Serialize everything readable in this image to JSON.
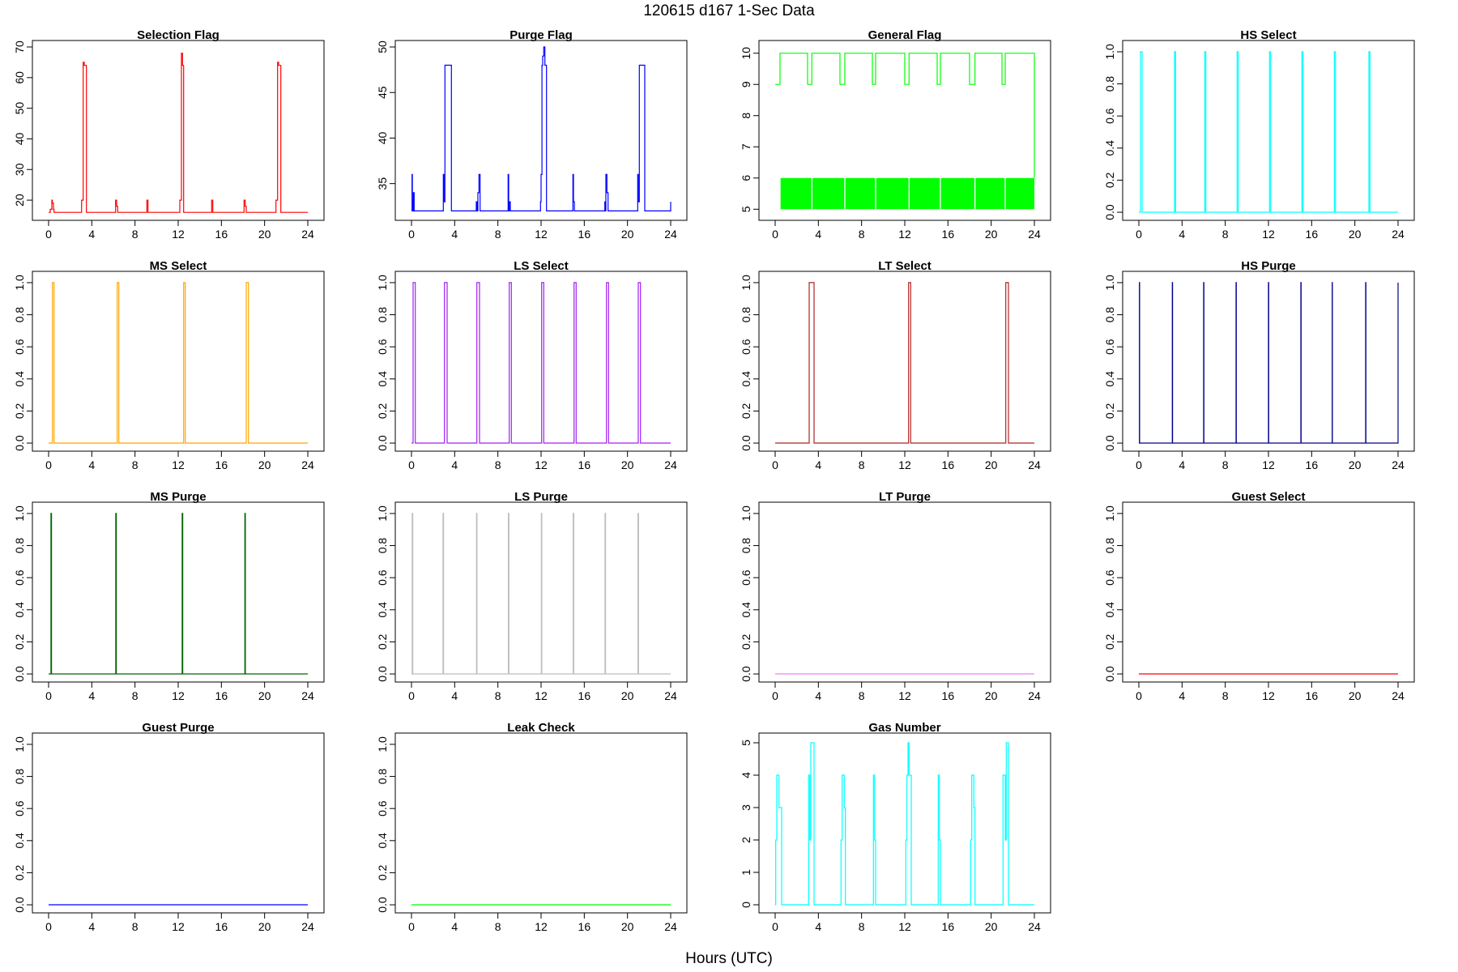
{
  "figure": {
    "title": "120615   d167   1-Sec Data",
    "xlabel": "Hours (UTC)"
  },
  "chart_data": [
    {
      "type": "line",
      "title": "Selection Flag",
      "color": "#ff0000",
      "xlim": [
        0,
        24
      ],
      "xticks": [
        0,
        4,
        8,
        12,
        16,
        20,
        24
      ],
      "ylim": [
        15,
        70
      ],
      "yticks": [
        20,
        30,
        40,
        50,
        60,
        70
      ],
      "series": [
        {
          "x": [
            0,
            0.15,
            0.3,
            0.35,
            0.45,
            0.5,
            3.05,
            3.2,
            3.3,
            3.5,
            3.6,
            6.05,
            6.2,
            6.3,
            6.4,
            9.0,
            9.1,
            9.2,
            12.05,
            12.15,
            12.3,
            12.4,
            12.5,
            15.0,
            15.1,
            15.2,
            18.0,
            18.1,
            18.2,
            18.3,
            21.05,
            21.2,
            21.3,
            21.5,
            21.6,
            24
          ],
          "y": [
            16,
            17,
            20,
            19,
            17,
            16,
            20,
            65,
            64,
            16,
            16,
            16,
            20,
            18,
            16,
            16,
            20,
            16,
            16,
            20,
            68,
            64,
            16,
            16,
            20,
            16,
            16,
            20,
            18,
            16,
            20,
            65,
            64,
            16,
            16,
            16
          ]
        }
      ]
    },
    {
      "type": "line",
      "title": "Purge Flag",
      "color": "#0000ff",
      "xlim": [
        0,
        24
      ],
      "xticks": [
        0,
        4,
        8,
        12,
        16,
        20,
        24
      ],
      "ylim": [
        31.5,
        50
      ],
      "yticks": [
        35,
        40,
        45,
        50
      ],
      "series": [
        {
          "x": [
            0,
            0.05,
            0.08,
            0.12,
            0.18,
            0.25,
            0.3,
            2.95,
            3.0,
            3.1,
            3.2,
            3.7,
            6.0,
            6.08,
            6.15,
            6.25,
            6.35,
            8.95,
            9.0,
            9.05,
            9.15,
            11.95,
            12.0,
            12.08,
            12.15,
            12.25,
            12.35,
            12.5,
            14.95,
            15.0,
            15.08,
            17.9,
            17.95,
            18.0,
            18.1,
            18.2,
            20.95,
            21.0,
            21.1,
            21.2,
            21.6,
            24
          ],
          "y": [
            32,
            36,
            33,
            32,
            34,
            32,
            32,
            36,
            33,
            48,
            48,
            32,
            33,
            32,
            34,
            36,
            32,
            36,
            32,
            33,
            32,
            33,
            36,
            48,
            49,
            50,
            48,
            32,
            36,
            33,
            32,
            33,
            32,
            36,
            34,
            32,
            36,
            33,
            48,
            48,
            32,
            33
          ]
        }
      ]
    },
    {
      "type": "line",
      "title": "General Flag",
      "color": "#00ff00",
      "xlim": [
        0,
        24
      ],
      "xticks": [
        0,
        4,
        8,
        12,
        16,
        20,
        24
      ],
      "ylim": [
        4.8,
        10.2
      ],
      "yticks": [
        5,
        6,
        7,
        8,
        9,
        10
      ],
      "pattern": "rapid toggling between 5 and 6 with periodic cycles reaching 9-10",
      "series": [
        {
          "x": [
            0,
            0.45,
            3.0,
            3.4,
            6.0,
            6.45,
            9.0,
            9.3,
            12.0,
            12.4,
            15.0,
            15.3,
            18.0,
            18.5,
            21.0,
            21.3,
            24
          ],
          "y": [
            9,
            10,
            9,
            10,
            9,
            10,
            9,
            10,
            9,
            10,
            9,
            10,
            9,
            10,
            9,
            10,
            6
          ]
        }
      ]
    },
    {
      "type": "line",
      "title": "HS Select",
      "color": "#00ffff",
      "xlim": [
        0,
        24
      ],
      "xticks": [
        0,
        4,
        8,
        12,
        16,
        20,
        24
      ],
      "ylim": [
        -0.02,
        1.03
      ],
      "yticks": [
        0.0,
        0.2,
        0.4,
        0.6,
        0.8,
        1.0
      ],
      "series": [
        {
          "x": [
            0.0,
            0.1,
            0.15,
            0.25,
            0.3,
            3.2,
            3.3,
            3.4,
            6.0,
            6.1,
            6.2,
            9.0,
            9.1,
            9.2,
            12.0,
            12.1,
            12.2,
            15.0,
            15.1,
            15.2,
            18.0,
            18.1,
            18.2,
            21.2,
            21.3,
            21.4,
            24
          ],
          "y": [
            0,
            0,
            1,
            1,
            0,
            0,
            1,
            0,
            0,
            1,
            0,
            0,
            1,
            0,
            0,
            1,
            0,
            0,
            1,
            0,
            0,
            1,
            0,
            0,
            1,
            0,
            0
          ]
        }
      ]
    },
    {
      "type": "line",
      "title": "MS Select",
      "color": "#ffa500",
      "xlim": [
        0,
        24
      ],
      "xticks": [
        0,
        4,
        8,
        12,
        16,
        20,
        24
      ],
      "ylim": [
        -0.02,
        1.03
      ],
      "yticks": [
        0.0,
        0.2,
        0.4,
        0.6,
        0.8,
        1.0
      ],
      "series": [
        {
          "x": [
            0,
            0.3,
            0.35,
            0.45,
            0.5,
            6.3,
            6.35,
            6.45,
            6.5,
            12.45,
            12.5,
            12.6,
            12.65,
            18.25,
            18.3,
            18.45,
            18.5,
            24
          ],
          "y": [
            0,
            0,
            1,
            1,
            0,
            0,
            1,
            1,
            0,
            0,
            1,
            1,
            0,
            0,
            1,
            1,
            0,
            0
          ]
        }
      ]
    },
    {
      "type": "line",
      "title": "LS Select",
      "color": "#a020f0",
      "xlim": [
        0,
        24
      ],
      "xticks": [
        0,
        4,
        8,
        12,
        16,
        20,
        24
      ],
      "ylim": [
        -0.02,
        1.03
      ],
      "yticks": [
        0.0,
        0.2,
        0.4,
        0.6,
        0.8,
        1.0
      ],
      "series": [
        {
          "x": [
            0,
            0.1,
            0.15,
            0.3,
            0.35,
            3.0,
            3.05,
            3.25,
            3.3,
            6.0,
            6.05,
            6.25,
            6.3,
            9.0,
            9.05,
            9.2,
            9.25,
            12.0,
            12.05,
            12.2,
            12.25,
            15.0,
            15.05,
            15.2,
            15.25,
            18.0,
            18.05,
            18.2,
            18.25,
            20.95,
            21.0,
            21.15,
            21.2,
            24
          ],
          "y": [
            0,
            0,
            1,
            1,
            0,
            0,
            1,
            1,
            0,
            0,
            1,
            1,
            0,
            0,
            1,
            1,
            0,
            0,
            1,
            1,
            0,
            0,
            1,
            1,
            0,
            0,
            1,
            1,
            0,
            0,
            1,
            1,
            0,
            0
          ]
        }
      ]
    },
    {
      "type": "line",
      "title": "LT Select",
      "color": "#b22222",
      "xlim": [
        0,
        24
      ],
      "xticks": [
        0,
        4,
        8,
        12,
        16,
        20,
        24
      ],
      "ylim": [
        -0.02,
        1.03
      ],
      "yticks": [
        0.0,
        0.2,
        0.4,
        0.6,
        0.8,
        1.0
      ],
      "series": [
        {
          "x": [
            0,
            3.1,
            3.15,
            3.55,
            3.6,
            12.3,
            12.35,
            12.5,
            12.55,
            21.3,
            21.35,
            21.55,
            21.6,
            24
          ],
          "y": [
            0,
            0,
            1,
            1,
            0,
            0,
            1,
            1,
            0,
            0,
            1,
            1,
            0,
            0
          ]
        }
      ]
    },
    {
      "type": "line",
      "title": "HS Purge",
      "color": "#00008b",
      "xlim": [
        0,
        24
      ],
      "xticks": [
        0,
        4,
        8,
        12,
        16,
        20,
        24
      ],
      "ylim": [
        -0.02,
        1.03
      ],
      "yticks": [
        0.0,
        0.2,
        0.4,
        0.6,
        0.8,
        1.0
      ],
      "series": [
        {
          "x": [
            0,
            0.05,
            0.07,
            0.09,
            3.1,
            3.12,
            3.14,
            6.0,
            6.02,
            6.04,
            9.0,
            9.02,
            9.04,
            12.0,
            12.02,
            12.04,
            15.0,
            15.02,
            15.04,
            17.9,
            17.92,
            17.94,
            21.0,
            21.02,
            21.04,
            23.98,
            24
          ],
          "y": [
            0,
            1,
            0,
            0,
            1,
            0,
            0,
            1,
            0,
            0,
            1,
            0,
            0,
            1,
            0,
            0,
            1,
            0,
            0,
            1,
            0,
            0,
            1,
            0,
            0,
            0,
            1
          ]
        }
      ]
    },
    {
      "type": "line",
      "title": "MS Purge",
      "color": "#006400",
      "xlim": [
        0,
        24
      ],
      "xticks": [
        0,
        4,
        8,
        12,
        16,
        20,
        24
      ],
      "ylim": [
        -0.02,
        1.03
      ],
      "yticks": [
        0.0,
        0.2,
        0.4,
        0.6,
        0.8,
        1.0
      ],
      "series": [
        {
          "x": [
            0,
            0.2,
            0.22,
            0.25,
            0.27,
            6.2,
            6.22,
            6.25,
            6.27,
            12.35,
            12.37,
            12.4,
            12.42,
            18.15,
            18.17,
            18.2,
            18.22,
            24
          ],
          "y": [
            0,
            0,
            1,
            1,
            0,
            0,
            1,
            1,
            0,
            0,
            1,
            1,
            0,
            0,
            1,
            1,
            0,
            0
          ]
        }
      ]
    },
    {
      "type": "line",
      "title": "LS Purge",
      "color": "#bebebe",
      "xlim": [
        0,
        24
      ],
      "xticks": [
        0,
        4,
        8,
        12,
        16,
        20,
        24
      ],
      "ylim": [
        -0.02,
        1.03
      ],
      "yticks": [
        0.0,
        0.2,
        0.4,
        0.6,
        0.8,
        1.0
      ],
      "series": [
        {
          "x": [
            0,
            0.05,
            0.07,
            0.1,
            0.12,
            2.9,
            2.92,
            2.95,
            2.97,
            6.0,
            6.02,
            6.05,
            6.07,
            8.95,
            8.97,
            9.0,
            9.02,
            12.0,
            12.02,
            12.05,
            12.07,
            14.95,
            14.97,
            15.0,
            15.02,
            17.9,
            17.92,
            17.95,
            17.97,
            20.95,
            20.97,
            21.0,
            21.02,
            24
          ],
          "y": [
            0,
            0,
            1,
            1,
            0,
            0,
            1,
            1,
            0,
            0,
            1,
            1,
            0,
            0,
            1,
            1,
            0,
            0,
            1,
            1,
            0,
            0,
            1,
            1,
            0,
            0,
            1,
            1,
            0,
            0,
            1,
            1,
            0,
            0
          ]
        }
      ]
    },
    {
      "type": "line",
      "title": "LT Purge",
      "color": "#ee82ee",
      "xlim": [
        0,
        24
      ],
      "xticks": [
        0,
        4,
        8,
        12,
        16,
        20,
        24
      ],
      "ylim": [
        -0.02,
        1.03
      ],
      "yticks": [
        0.0,
        0.2,
        0.4,
        0.6,
        0.8,
        1.0
      ],
      "series": [
        {
          "x": [
            0,
            24
          ],
          "y": [
            0,
            0
          ]
        }
      ]
    },
    {
      "type": "line",
      "title": "Guest Select",
      "color": "#ff0000",
      "xlim": [
        0,
        24
      ],
      "xticks": [
        0,
        4,
        8,
        12,
        16,
        20,
        24
      ],
      "ylim": [
        -0.02,
        1.03
      ],
      "yticks": [
        0.0,
        0.2,
        0.4,
        0.6,
        0.8,
        1.0
      ],
      "series": [
        {
          "x": [
            0,
            24
          ],
          "y": [
            0,
            0
          ]
        }
      ]
    },
    {
      "type": "line",
      "title": "Guest Purge",
      "color": "#0000ff",
      "xlim": [
        0,
        24
      ],
      "xticks": [
        0,
        4,
        8,
        12,
        16,
        20,
        24
      ],
      "ylim": [
        -0.02,
        1.03
      ],
      "yticks": [
        0.0,
        0.2,
        0.4,
        0.6,
        0.8,
        1.0
      ],
      "series": [
        {
          "x": [
            0,
            24
          ],
          "y": [
            0,
            0
          ]
        }
      ]
    },
    {
      "type": "line",
      "title": "Leak Check",
      "color": "#00ff00",
      "xlim": [
        0,
        24
      ],
      "xticks": [
        0,
        4,
        8,
        12,
        16,
        20,
        24
      ],
      "ylim": [
        -0.02,
        1.03
      ],
      "yticks": [
        0.0,
        0.2,
        0.4,
        0.6,
        0.8,
        1.0
      ],
      "series": [
        {
          "x": [
            0,
            24
          ],
          "y": [
            0,
            0
          ]
        }
      ]
    },
    {
      "type": "line",
      "title": "Gas Number",
      "color": "#00ffff",
      "xlim": [
        0,
        24
      ],
      "xticks": [
        0,
        4,
        8,
        12,
        16,
        20,
        24
      ],
      "ylim": [
        -0.1,
        5.1
      ],
      "yticks": [
        0,
        1,
        2,
        3,
        4,
        5
      ],
      "series": [
        {
          "x": [
            0,
            0.05,
            0.15,
            0.3,
            0.35,
            0.45,
            0.6,
            3.0,
            3.1,
            3.2,
            3.3,
            3.5,
            3.6,
            6.0,
            6.1,
            6.2,
            6.3,
            6.4,
            6.5,
            9.0,
            9.1,
            9.2,
            9.3,
            12.0,
            12.1,
            12.2,
            12.3,
            12.4,
            12.6,
            15.0,
            15.1,
            15.2,
            15.3,
            18.0,
            18.1,
            18.2,
            18.3,
            18.4,
            18.5,
            21.0,
            21.1,
            21.2,
            21.3,
            21.4,
            21.6,
            24
          ],
          "y": [
            0,
            2,
            4,
            4,
            3,
            3,
            0,
            0,
            4,
            2,
            5,
            5,
            0,
            0,
            2,
            4,
            4,
            3,
            0,
            0,
            4,
            2,
            0,
            0,
            2,
            4,
            5,
            4,
            0,
            0,
            4,
            2,
            0,
            0,
            2,
            4,
            4,
            3,
            0,
            0,
            4,
            4,
            2,
            5,
            0,
            0
          ]
        }
      ]
    }
  ]
}
